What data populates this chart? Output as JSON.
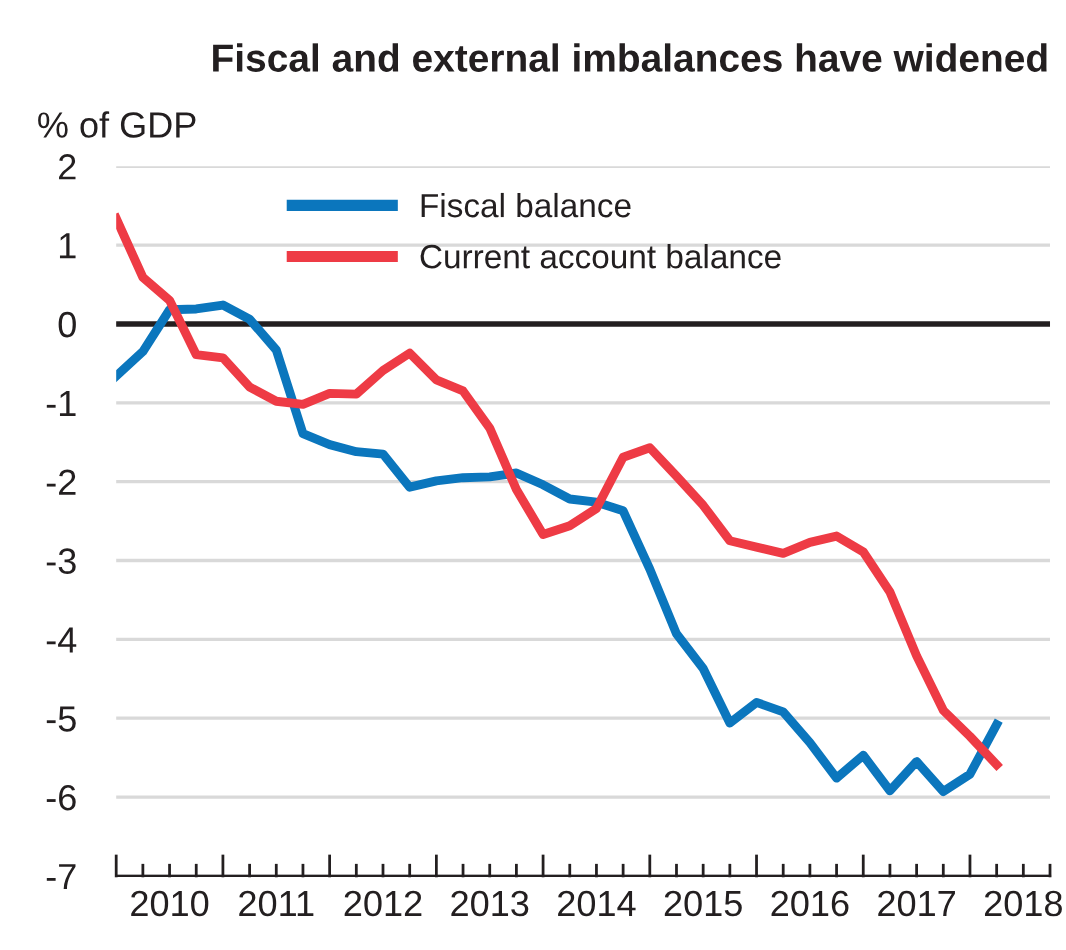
{
  "chart_data": {
    "type": "line",
    "title": "Fiscal and external imbalances have widened",
    "ylabel": "% of GDP",
    "x": [
      2010.0,
      2010.25,
      2010.5,
      2010.75,
      2011.0,
      2011.25,
      2011.5,
      2011.75,
      2012.0,
      2012.25,
      2012.5,
      2012.75,
      2013.0,
      2013.25,
      2013.5,
      2013.75,
      2014.0,
      2014.25,
      2014.5,
      2014.75,
      2015.0,
      2015.25,
      2015.5,
      2015.75,
      2016.0,
      2016.25,
      2016.5,
      2016.75,
      2017.0,
      2017.25,
      2017.5,
      2017.75,
      2018.0,
      2018.25
    ],
    "series": [
      {
        "name": "Fiscal balance",
        "color": "#0b76bd",
        "values": [
          -0.66,
          -0.35,
          0.18,
          0.19,
          0.24,
          0.06,
          -0.33,
          -1.39,
          -1.53,
          -1.62,
          -1.65,
          -2.07,
          -1.99,
          -1.95,
          -1.94,
          -1.89,
          -2.04,
          -2.22,
          -2.26,
          -2.37,
          -3.11,
          -3.93,
          -4.37,
          -5.06,
          -4.8,
          -4.92,
          -5.31,
          -5.76,
          -5.47,
          -5.92,
          -5.55,
          -5.93,
          -5.71,
          -5.08
        ]
      },
      {
        "name": "Current account balance",
        "color": "#ee3b45",
        "values": [
          1.34,
          0.59,
          0.3,
          -0.39,
          -0.43,
          -0.8,
          -0.98,
          -1.02,
          -0.88,
          -0.89,
          -0.59,
          -0.37,
          -0.71,
          -0.85,
          -1.32,
          -2.1,
          -2.67,
          -2.56,
          -2.34,
          -1.69,
          -1.57,
          -1.93,
          -2.3,
          -2.75,
          -2.83,
          -2.91,
          -2.77,
          -2.69,
          -2.89,
          -3.4,
          -4.21,
          -4.9,
          -5.23,
          -5.59
        ]
      }
    ],
    "xlim": [
      2010,
      2018.75
    ],
    "xticks": [
      {
        "value": 2010,
        "label": null
      },
      {
        "value": 2010.25,
        "label": null
      },
      {
        "value": 2010.5,
        "label": "2010"
      },
      {
        "value": 2010.75,
        "label": null
      },
      {
        "value": 2011,
        "label": null
      },
      {
        "value": 2011.25,
        "label": null
      },
      {
        "value": 2011.5,
        "label": "2011"
      },
      {
        "value": 2011.75,
        "label": null
      },
      {
        "value": 2012,
        "label": null
      },
      {
        "value": 2012.25,
        "label": null
      },
      {
        "value": 2012.5,
        "label": "2012"
      },
      {
        "value": 2012.75,
        "label": null
      },
      {
        "value": 2013,
        "label": null
      },
      {
        "value": 2013.25,
        "label": null
      },
      {
        "value": 2013.5,
        "label": "2013"
      },
      {
        "value": 2013.75,
        "label": null
      },
      {
        "value": 2014,
        "label": null
      },
      {
        "value": 2014.25,
        "label": null
      },
      {
        "value": 2014.5,
        "label": "2014"
      },
      {
        "value": 2014.75,
        "label": null
      },
      {
        "value": 2015,
        "label": null
      },
      {
        "value": 2015.25,
        "label": null
      },
      {
        "value": 2015.5,
        "label": "2015"
      },
      {
        "value": 2015.75,
        "label": null
      },
      {
        "value": 2016,
        "label": null
      },
      {
        "value": 2016.25,
        "label": null
      },
      {
        "value": 2016.5,
        "label": "2016"
      },
      {
        "value": 2016.75,
        "label": null
      },
      {
        "value": 2017,
        "label": null
      },
      {
        "value": 2017.25,
        "label": null
      },
      {
        "value": 2017.5,
        "label": "2017"
      },
      {
        "value": 2017.75,
        "label": null
      },
      {
        "value": 2018,
        "label": null
      },
      {
        "value": 2018.25,
        "label": null
      },
      {
        "value": 2018.5,
        "label": "2018"
      },
      {
        "value": 2018.75,
        "label": null
      }
    ],
    "ylim": [
      -7,
      2
    ],
    "yticks": [
      -7,
      -6,
      -5,
      -4,
      -3,
      -2,
      -1,
      0,
      1,
      2
    ],
    "ref_lines": [
      {
        "axis": "y",
        "value": 0,
        "label": null,
        "color": "#231f20"
      }
    ],
    "grid": "y",
    "legend": "top left",
    "marker": "none",
    "line_style": "solid"
  }
}
